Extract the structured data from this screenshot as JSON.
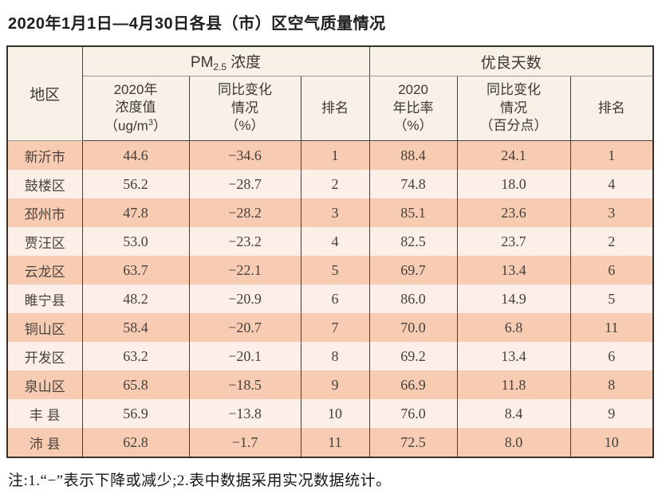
{
  "title": "2020年1月1日—4月30日各县（市）区空气质量情况",
  "table": {
    "corner_header": "地区",
    "band_pm": {
      "prefix": "PM",
      "sub": "2.5",
      "suffix": "浓度"
    },
    "band_days": "优良天数",
    "sub_headers": {
      "pm_value": {
        "line1": "2020年",
        "line2": "浓度值",
        "line3_pre": "（ug/m",
        "line3_sup": "3",
        "line3_post": "）"
      },
      "pm_change": {
        "line1": "同比变化",
        "line2": "情况",
        "line3": "（%）"
      },
      "pm_rank": "排名",
      "rate": {
        "line1": "2020",
        "line2": "年比率",
        "line3": "（%）"
      },
      "rate_change": {
        "line1": "同比变化",
        "line2": "情况",
        "line3": "（百分点）"
      },
      "rate_rank": "排名"
    },
    "rows": [
      {
        "cells": [
          "新沂市",
          "44.6",
          "−34.6",
          "1",
          "88.4",
          "24.1",
          "1"
        ]
      },
      {
        "cells": [
          "鼓楼区",
          "56.2",
          "−28.7",
          "2",
          "74.8",
          "18.0",
          "4"
        ]
      },
      {
        "cells": [
          "邳州市",
          "47.8",
          "−28.2",
          "3",
          "85.1",
          "23.6",
          "3"
        ]
      },
      {
        "cells": [
          "贾汪区",
          "53.0",
          "−23.2",
          "4",
          "82.5",
          "23.7",
          "2"
        ]
      },
      {
        "cells": [
          "云龙区",
          "63.7",
          "−22.1",
          "5",
          "69.7",
          "13.4",
          "6"
        ]
      },
      {
        "cells": [
          "睢宁县",
          "48.2",
          "−20.9",
          "6",
          "86.0",
          "14.9",
          "5"
        ]
      },
      {
        "cells": [
          "铜山区",
          "58.4",
          "−20.7",
          "7",
          "70.0",
          "6.8",
          "11"
        ]
      },
      {
        "cells": [
          "开发区",
          "63.2",
          "−20.1",
          "8",
          "69.2",
          "13.4",
          "6"
        ]
      },
      {
        "cells": [
          "泉山区",
          "65.8",
          "−18.5",
          "9",
          "66.9",
          "11.8",
          "8"
        ]
      },
      {
        "cells": [
          "丰 县",
          "56.9",
          "−13.8",
          "10",
          "76.0",
          "8.4",
          "9"
        ]
      },
      {
        "cells": [
          "沛 县",
          "62.8",
          "−1.7",
          "11",
          "72.5",
          "8.0",
          "10"
        ]
      }
    ]
  },
  "footnote": "注:1.“−”表示下降或减少;2.表中数据采用实况数据统计。",
  "colors": {
    "stripe_peach": "#f8ccb2",
    "stripe_light": "#fcefe7",
    "header_cream": "#f8f1e8",
    "border_dark": "#45403c",
    "border_outer": "#36302c",
    "band_underline": "#9e9a96"
  }
}
